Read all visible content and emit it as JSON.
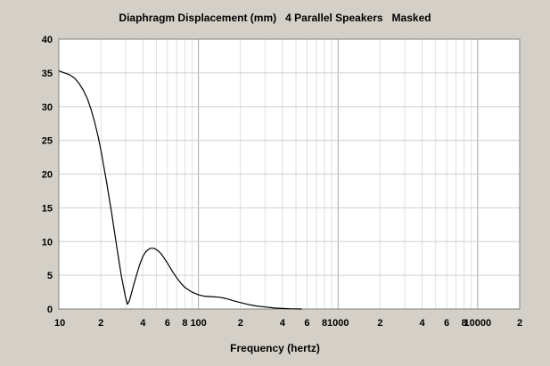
{
  "chart_data": {
    "type": "line",
    "title": "Diaphragm Displacement (mm)   4 Parallel Speakers   Masked",
    "xlabel": "Frequency (hertz)",
    "ylabel": "",
    "x_scale": "log",
    "xlim": [
      10,
      20000
    ],
    "ylim": [
      0,
      40
    ],
    "grid": true,
    "x_ticks": [
      {
        "value": 10,
        "label": "10"
      },
      {
        "value": 20,
        "label": "2"
      },
      {
        "value": 40,
        "label": "4"
      },
      {
        "value": 60,
        "label": "6"
      },
      {
        "value": 80,
        "label": "8"
      },
      {
        "value": 100,
        "label": "100"
      },
      {
        "value": 200,
        "label": "2"
      },
      {
        "value": 400,
        "label": "4"
      },
      {
        "value": 600,
        "label": "6"
      },
      {
        "value": 800,
        "label": "8"
      },
      {
        "value": 1000,
        "label": "1000"
      },
      {
        "value": 2000,
        "label": "2"
      },
      {
        "value": 4000,
        "label": "4"
      },
      {
        "value": 6000,
        "label": "6"
      },
      {
        "value": 8000,
        "label": "8"
      },
      {
        "value": 10000,
        "label": "10000"
      },
      {
        "value": 20000,
        "label": "2"
      }
    ],
    "y_ticks": [
      0,
      5,
      10,
      15,
      20,
      25,
      30,
      35,
      40
    ],
    "series": [
      {
        "color": "#000000",
        "x": [
          10,
          11,
          12,
          13,
          14,
          15,
          16,
          17,
          18,
          19,
          20,
          22,
          24,
          26,
          28,
          30,
          31,
          32,
          33,
          34,
          36,
          38,
          40,
          42,
          45,
          48,
          51,
          54,
          57,
          60,
          65,
          70,
          75,
          80,
          90,
          100,
          110,
          120,
          130,
          140,
          150,
          160,
          180,
          200,
          230,
          260,
          300,
          350,
          400,
          450,
          500,
          550
        ],
        "y": [
          35.3,
          35.0,
          34.7,
          34.2,
          33.4,
          32.4,
          31.2,
          29.6,
          27.8,
          25.8,
          23.6,
          18.8,
          14.0,
          9.2,
          5.0,
          1.8,
          0.7,
          1.2,
          2.2,
          3.2,
          5.0,
          6.6,
          7.8,
          8.5,
          9.0,
          9.0,
          8.7,
          8.2,
          7.5,
          6.8,
          5.6,
          4.6,
          3.8,
          3.2,
          2.5,
          2.1,
          1.9,
          1.85,
          1.8,
          1.75,
          1.65,
          1.5,
          1.2,
          0.95,
          0.65,
          0.45,
          0.3,
          0.15,
          0.08,
          0.04,
          0.02,
          0.0
        ]
      }
    ]
  }
}
